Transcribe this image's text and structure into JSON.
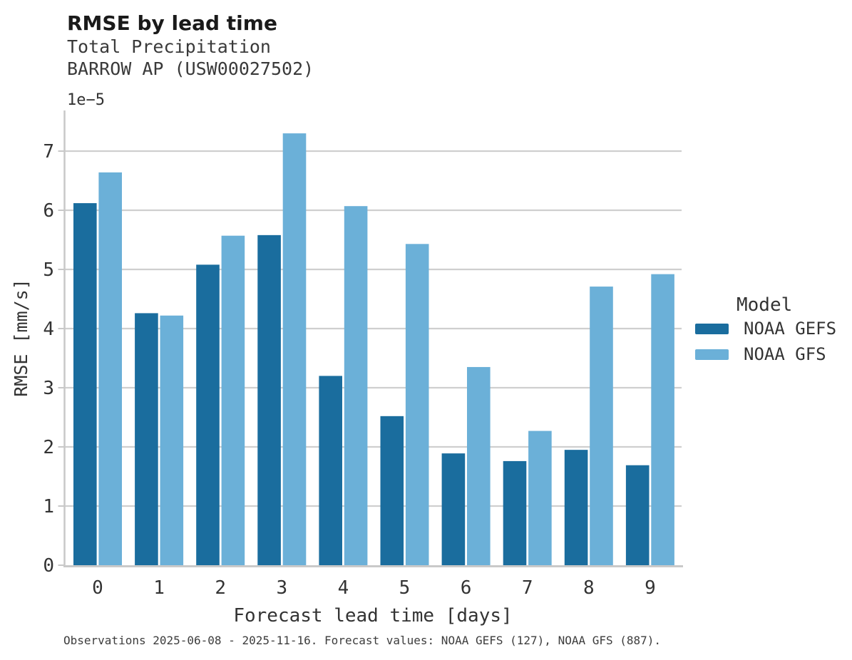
{
  "header": {
    "title": "RMSE by lead time",
    "subtitle_line1": "Total Precipitation",
    "subtitle_line2": "BARROW AP (USW00027502)"
  },
  "chart_data": {
    "type": "bar",
    "title": "RMSE by lead time",
    "subtitle": [
      "Total Precipitation",
      "BARROW AP (USW00027502)"
    ],
    "categories": [
      "0",
      "1",
      "2",
      "3",
      "4",
      "5",
      "6",
      "7",
      "8",
      "9"
    ],
    "series": [
      {
        "name": "NOAA GEFS",
        "color": "#1a6d9e",
        "values": [
          6.12,
          4.26,
          5.08,
          5.58,
          3.2,
          2.52,
          1.89,
          1.76,
          1.95,
          1.69
        ]
      },
      {
        "name": "NOAA GFS",
        "color": "#6bb0d8",
        "values": [
          6.64,
          4.22,
          5.57,
          7.3,
          6.07,
          5.43,
          3.35,
          2.27,
          4.71,
          4.92
        ]
      }
    ],
    "value_scale_label": "1e−5",
    "xlabel": "Forecast lead time [days]",
    "ylabel": "RMSE [mm/s]",
    "ylim": [
      0,
      7.69
    ],
    "yticks": [
      0,
      1,
      2,
      3,
      4,
      5,
      6,
      7
    ],
    "grid": "horizontal",
    "legend_title": "Model",
    "legend_position": "right"
  },
  "legend": {
    "title": "Model"
  },
  "caption": "Observations 2025-06-08 - 2025-11-16. Forecast values: NOAA GEFS (127), NOAA GFS (887)."
}
